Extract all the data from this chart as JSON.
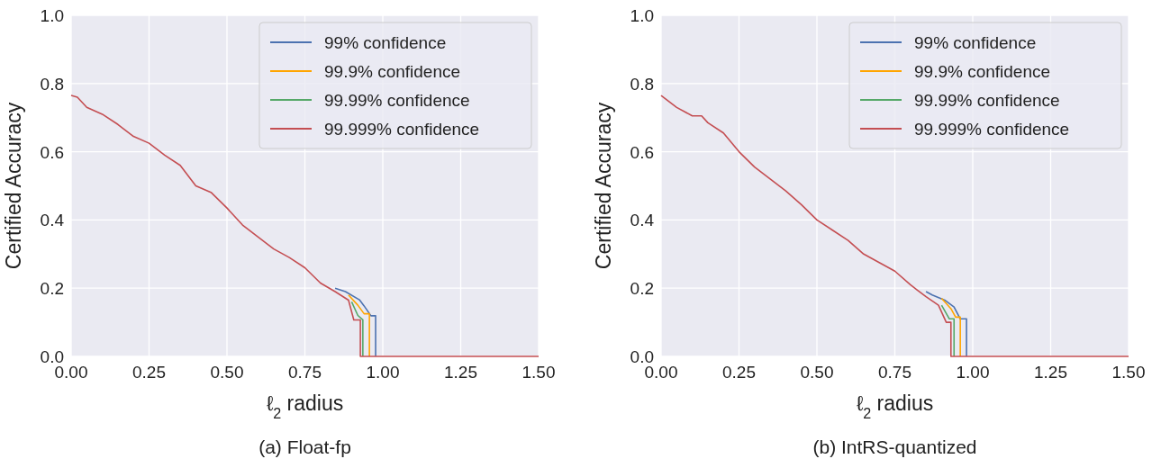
{
  "chart_data": [
    {
      "type": "line",
      "xlabel": "ℓ$_{2}$ radius",
      "ylabel": "Certified Accuracy",
      "annotations": [
        "(a) Float-fp"
      ],
      "xlim": [
        0,
        1.5
      ],
      "ylim": [
        0,
        1
      ],
      "xticks": [
        {
          "value": 0,
          "label": "0.00"
        },
        {
          "value": 0.25,
          "label": "0.25"
        },
        {
          "value": 0.5,
          "label": "0.50"
        },
        {
          "value": 0.75,
          "label": "0.75"
        },
        {
          "value": 1,
          "label": "1.00"
        },
        {
          "value": 1.25,
          "label": "1.25"
        },
        {
          "value": 1.5,
          "label": "1.50"
        }
      ],
      "yticks": [
        {
          "value": 0,
          "label": "0.0"
        },
        {
          "value": 0.2,
          "label": "0.2"
        },
        {
          "value": 0.4,
          "label": "0.4"
        },
        {
          "value": 0.6,
          "label": "0.6"
        },
        {
          "value": 0.8,
          "label": "0.8"
        },
        {
          "value": 1,
          "label": "1.0"
        }
      ],
      "grid": true,
      "legend": "top right",
      "marker": "none",
      "line_style": "solid",
      "series": [
        {
          "name": "99% confidence",
          "color": "#4c72b0",
          "x": [
            0.847,
            0.88,
            0.925,
            0.94,
            0.962,
            0.977,
            0.977
          ],
          "values": [
            0.2,
            0.19,
            0.166,
            0.148,
            0.119,
            0.119,
            0
          ]
        },
        {
          "name": "99.9% confidence",
          "color": "#ffa500",
          "x": [
            0.89,
            0.92,
            0.94,
            0.957,
            0.957
          ],
          "values": [
            0.18,
            0.15,
            0.125,
            0.125,
            0
          ]
        },
        {
          "name": "99.99% confidence",
          "color": "#55a868",
          "x": [
            0.9,
            0.92,
            0.936,
            0.936
          ],
          "values": [
            0.16,
            0.12,
            0.107,
            0
          ]
        },
        {
          "name": "99.999% confidence",
          "color": "#c44e52",
          "x": [
            0,
            0.02,
            0.05,
            0.1,
            0.15,
            0.2,
            0.25,
            0.3,
            0.35,
            0.4,
            0.45,
            0.5,
            0.55,
            0.6,
            0.65,
            0.7,
            0.75,
            0.8,
            0.847,
            0.89,
            0.907,
            0.928,
            0.928,
            1.5
          ],
          "values": [
            0.765,
            0.76,
            0.73,
            0.71,
            0.68,
            0.645,
            0.625,
            0.59,
            0.56,
            0.5,
            0.48,
            0.435,
            0.385,
            0.35,
            0.315,
            0.29,
            0.26,
            0.215,
            0.19,
            0.165,
            0.107,
            0.107,
            0,
            0
          ]
        }
      ]
    },
    {
      "type": "line",
      "xlabel": "ℓ$_{2}$ radius",
      "ylabel": "Certified Accuracy",
      "annotations": [
        "(b) IntRS-quantized"
      ],
      "xlim": [
        0,
        1.5
      ],
      "ylim": [
        0,
        1
      ],
      "xticks": [
        {
          "value": 0,
          "label": "0.00"
        },
        {
          "value": 0.25,
          "label": "0.25"
        },
        {
          "value": 0.5,
          "label": "0.50"
        },
        {
          "value": 0.75,
          "label": "0.75"
        },
        {
          "value": 1,
          "label": "1.00"
        },
        {
          "value": 1.25,
          "label": "1.25"
        },
        {
          "value": 1.5,
          "label": "1.50"
        }
      ],
      "yticks": [
        {
          "value": 0,
          "label": "0.0"
        },
        {
          "value": 0.2,
          "label": "0.2"
        },
        {
          "value": 0.4,
          "label": "0.4"
        },
        {
          "value": 0.6,
          "label": "0.6"
        },
        {
          "value": 0.8,
          "label": "0.8"
        },
        {
          "value": 1,
          "label": "1.0"
        }
      ],
      "grid": true,
      "legend": "top right",
      "marker": "none",
      "line_style": "solid",
      "series": [
        {
          "name": "99% confidence",
          "color": "#4c72b0",
          "x": [
            0.85,
            0.87,
            0.91,
            0.94,
            0.96,
            0.98,
            0.98
          ],
          "values": [
            0.19,
            0.18,
            0.165,
            0.145,
            0.11,
            0.11,
            0
          ]
        },
        {
          "name": "99.9% confidence",
          "color": "#ffa500",
          "x": [
            0.9,
            0.93,
            0.945,
            0.96,
            0.96
          ],
          "values": [
            0.17,
            0.14,
            0.115,
            0.115,
            0
          ]
        },
        {
          "name": "99.99% confidence",
          "color": "#55a868",
          "x": [
            0.9,
            0.925,
            0.94,
            0.94
          ],
          "values": [
            0.15,
            0.11,
            0.11,
            0
          ]
        },
        {
          "name": "99.999% confidence",
          "color": "#c44e52",
          "x": [
            0,
            0.05,
            0.1,
            0.13,
            0.15,
            0.2,
            0.25,
            0.3,
            0.35,
            0.4,
            0.45,
            0.5,
            0.55,
            0.6,
            0.65,
            0.7,
            0.75,
            0.8,
            0.85,
            0.89,
            0.915,
            0.93,
            0.93,
            1.5
          ],
          "values": [
            0.765,
            0.73,
            0.705,
            0.705,
            0.685,
            0.655,
            0.6,
            0.555,
            0.52,
            0.485,
            0.445,
            0.4,
            0.37,
            0.34,
            0.3,
            0.275,
            0.25,
            0.21,
            0.175,
            0.15,
            0.1,
            0.1,
            0,
            0
          ]
        }
      ]
    }
  ]
}
